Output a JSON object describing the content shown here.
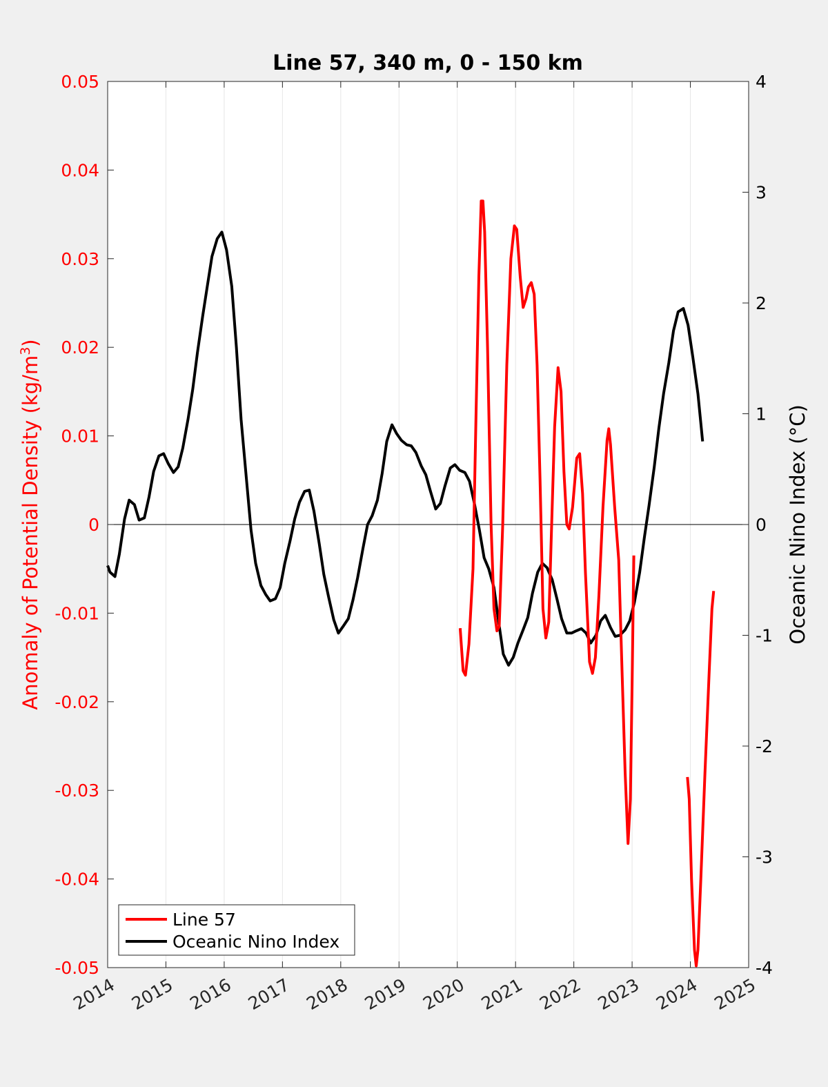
{
  "chart_data": {
    "type": "line",
    "title": "Line 57, 340 m, 0 - 150 km",
    "ylabel_left": "Anomaly of Potential Density (kg/m",
    "ylabel_left_sup": "3",
    "ylabel_left_close": ")",
    "ylabel_right": "Oceanic Nino Index (°C)",
    "xlim": [
      2014,
      2025
    ],
    "ylim_left": [
      -0.05,
      0.05
    ],
    "ylim_right": [
      -4,
      4
    ],
    "x_ticks": [
      "2014",
      "2015",
      "2016",
      "2017",
      "2018",
      "2019",
      "2020",
      "2021",
      "2022",
      "2023",
      "2024",
      "2025"
    ],
    "y_left_ticks": [
      "0.05",
      "0.04",
      "0.03",
      "0.02",
      "0.01",
      "0",
      "-0.01",
      "-0.02",
      "-0.03",
      "-0.04",
      "-0.05"
    ],
    "y_right_ticks": [
      "4",
      "3",
      "2",
      "1",
      "0",
      "-1",
      "-2",
      "-3",
      "-4"
    ],
    "grid": "vertical",
    "legend_position": "bottom-left",
    "series": [
      {
        "name": "Line 57",
        "axis": "left",
        "color": "#ff0000",
        "segments": [
          [
            [
              2020.05,
              -0.0117
            ],
            [
              2020.1,
              -0.0165
            ],
            [
              2020.14,
              -0.017
            ],
            [
              2020.2,
              -0.0135
            ],
            [
              2020.27,
              -0.005
            ],
            [
              2020.32,
              0.012
            ],
            [
              2020.37,
              0.028
            ],
            [
              2020.41,
              0.0365
            ],
            [
              2020.44,
              0.0365
            ],
            [
              2020.47,
              0.033
            ],
            [
              2020.52,
              0.02
            ],
            [
              2020.58,
              0.0
            ],
            [
              2020.63,
              -0.0095
            ],
            [
              2020.68,
              -0.012
            ],
            [
              2020.72,
              -0.0115
            ],
            [
              2020.78,
              0.0
            ],
            [
              2020.85,
              0.018
            ],
            [
              2020.92,
              0.03
            ],
            [
              2020.98,
              0.0337
            ],
            [
              2021.02,
              0.0333
            ],
            [
              2021.08,
              0.028
            ],
            [
              2021.13,
              0.0245
            ],
            [
              2021.18,
              0.0255
            ],
            [
              2021.22,
              0.0268
            ],
            [
              2021.27,
              0.0273
            ],
            [
              2021.32,
              0.026
            ],
            [
              2021.37,
              0.018
            ],
            [
              2021.42,
              0.005
            ],
            [
              2021.47,
              -0.0095
            ],
            [
              2021.52,
              -0.0128
            ],
            [
              2021.57,
              -0.011
            ],
            [
              2021.62,
              -0.0
            ],
            [
              2021.67,
              0.011
            ],
            [
              2021.73,
              0.0177
            ],
            [
              2021.78,
              0.015
            ],
            [
              2021.83,
              0.006
            ],
            [
              2021.88,
              0.0
            ],
            [
              2021.92,
              -0.0005
            ],
            [
              2021.98,
              0.002
            ],
            [
              2022.05,
              0.0075
            ],
            [
              2022.1,
              0.008
            ],
            [
              2022.15,
              0.0035
            ],
            [
              2022.2,
              -0.0055
            ],
            [
              2022.27,
              -0.0155
            ],
            [
              2022.32,
              -0.0168
            ],
            [
              2022.37,
              -0.015
            ],
            [
              2022.43,
              -0.008
            ],
            [
              2022.5,
              0.002
            ],
            [
              2022.57,
              0.0095
            ],
            [
              2022.6,
              0.0108
            ],
            [
              2022.63,
              0.009
            ],
            [
              2022.7,
              0.002
            ],
            [
              2022.77,
              -0.004
            ],
            [
              2022.83,
              -0.017
            ],
            [
              2022.88,
              -0.028
            ],
            [
              2022.93,
              -0.036
            ],
            [
              2022.97,
              -0.031
            ],
            [
              2023.0,
              -0.018
            ],
            [
              2023.03,
              -0.0035
            ]
          ],
          [
            [
              2023.95,
              -0.0285
            ],
            [
              2023.98,
              -0.031
            ],
            [
              2024.02,
              -0.04
            ],
            [
              2024.07,
              -0.048
            ],
            [
              2024.1,
              -0.0498
            ],
            [
              2024.13,
              -0.048
            ],
            [
              2024.18,
              -0.04
            ],
            [
              2024.25,
              -0.028
            ],
            [
              2024.32,
              -0.017
            ],
            [
              2024.37,
              -0.0095
            ],
            [
              2024.4,
              -0.0075
            ]
          ]
        ]
      },
      {
        "name": "Oceanic Nino Index",
        "axis": "right",
        "color": "#000000",
        "segments": [
          [
            [
              2014.0,
              -0.37
            ],
            [
              2014.04,
              -0.43
            ],
            [
              2014.125,
              -0.47
            ],
            [
              2014.2,
              -0.27
            ],
            [
              2014.29,
              0.05
            ],
            [
              2014.37,
              0.22
            ],
            [
              2014.46,
              0.18
            ],
            [
              2014.54,
              0.04
            ],
            [
              2014.63,
              0.06
            ],
            [
              2014.71,
              0.25
            ],
            [
              2014.79,
              0.48
            ],
            [
              2014.88,
              0.62
            ],
            [
              2014.96,
              0.64
            ],
            [
              2015.04,
              0.55
            ],
            [
              2015.13,
              0.47
            ],
            [
              2015.21,
              0.52
            ],
            [
              2015.29,
              0.69
            ],
            [
              2015.38,
              0.95
            ],
            [
              2015.46,
              1.22
            ],
            [
              2015.54,
              1.55
            ],
            [
              2015.63,
              1.88
            ],
            [
              2015.71,
              2.15
            ],
            [
              2015.79,
              2.42
            ],
            [
              2015.88,
              2.58
            ],
            [
              2015.96,
              2.64
            ],
            [
              2016.04,
              2.48
            ],
            [
              2016.13,
              2.15
            ],
            [
              2016.21,
              1.6
            ],
            [
              2016.29,
              0.95
            ],
            [
              2016.38,
              0.42
            ],
            [
              2016.46,
              -0.05
            ],
            [
              2016.54,
              -0.35
            ],
            [
              2016.63,
              -0.55
            ],
            [
              2016.71,
              -0.63
            ],
            [
              2016.79,
              -0.69
            ],
            [
              2016.88,
              -0.67
            ],
            [
              2016.96,
              -0.57
            ],
            [
              2017.04,
              -0.35
            ],
            [
              2017.13,
              -0.15
            ],
            [
              2017.21,
              0.05
            ],
            [
              2017.29,
              0.2
            ],
            [
              2017.38,
              0.3
            ],
            [
              2017.46,
              0.31
            ],
            [
              2017.54,
              0.12
            ],
            [
              2017.63,
              -0.17
            ],
            [
              2017.71,
              -0.45
            ],
            [
              2017.79,
              -0.65
            ],
            [
              2017.88,
              -0.86
            ],
            [
              2017.96,
              -0.98
            ],
            [
              2018.04,
              -0.92
            ],
            [
              2018.13,
              -0.85
            ],
            [
              2018.21,
              -0.68
            ],
            [
              2018.29,
              -0.48
            ],
            [
              2018.38,
              -0.22
            ],
            [
              2018.46,
              -0.0
            ],
            [
              2018.54,
              0.08
            ],
            [
              2018.63,
              0.22
            ],
            [
              2018.71,
              0.46
            ],
            [
              2018.79,
              0.75
            ],
            [
              2018.88,
              0.9
            ],
            [
              2018.96,
              0.82
            ],
            [
              2019.04,
              0.76
            ],
            [
              2019.13,
              0.72
            ],
            [
              2019.21,
              0.71
            ],
            [
              2019.29,
              0.65
            ],
            [
              2019.38,
              0.53
            ],
            [
              2019.46,
              0.45
            ],
            [
              2019.54,
              0.3
            ],
            [
              2019.63,
              0.14
            ],
            [
              2019.71,
              0.19
            ],
            [
              2019.79,
              0.35
            ],
            [
              2019.88,
              0.51
            ],
            [
              2019.96,
              0.54
            ],
            [
              2020.04,
              0.49
            ],
            [
              2020.13,
              0.47
            ],
            [
              2020.21,
              0.39
            ],
            [
              2020.29,
              0.2
            ],
            [
              2020.38,
              -0.05
            ],
            [
              2020.46,
              -0.3
            ],
            [
              2020.54,
              -0.4
            ],
            [
              2020.63,
              -0.57
            ],
            [
              2020.71,
              -0.88
            ],
            [
              2020.79,
              -1.17
            ],
            [
              2020.88,
              -1.27
            ],
            [
              2020.96,
              -1.2
            ],
            [
              2021.04,
              -1.07
            ],
            [
              2021.13,
              -0.95
            ],
            [
              2021.21,
              -0.84
            ],
            [
              2021.29,
              -0.62
            ],
            [
              2021.38,
              -0.43
            ],
            [
              2021.46,
              -0.35
            ],
            [
              2021.54,
              -0.39
            ],
            [
              2021.63,
              -0.5
            ],
            [
              2021.71,
              -0.67
            ],
            [
              2021.79,
              -0.85
            ],
            [
              2021.88,
              -0.98
            ],
            [
              2021.96,
              -0.98
            ],
            [
              2022.04,
              -0.96
            ],
            [
              2022.13,
              -0.94
            ],
            [
              2022.21,
              -0.98
            ],
            [
              2022.29,
              -1.07
            ],
            [
              2022.38,
              -1.0
            ],
            [
              2022.46,
              -0.87
            ],
            [
              2022.54,
              -0.82
            ],
            [
              2022.63,
              -0.93
            ],
            [
              2022.71,
              -1.01
            ],
            [
              2022.79,
              -1.0
            ],
            [
              2022.88,
              -0.95
            ],
            [
              2022.96,
              -0.87
            ],
            [
              2023.04,
              -0.7
            ],
            [
              2023.13,
              -0.43
            ],
            [
              2023.21,
              -0.12
            ],
            [
              2023.29,
              0.17
            ],
            [
              2023.38,
              0.52
            ],
            [
              2023.46,
              0.87
            ],
            [
              2023.54,
              1.18
            ],
            [
              2023.63,
              1.46
            ],
            [
              2023.71,
              1.75
            ],
            [
              2023.79,
              1.92
            ],
            [
              2023.88,
              1.95
            ],
            [
              2023.96,
              1.8
            ],
            [
              2024.04,
              1.52
            ],
            [
              2024.13,
              1.18
            ],
            [
              2024.21,
              0.75
            ]
          ]
        ]
      }
    ]
  }
}
